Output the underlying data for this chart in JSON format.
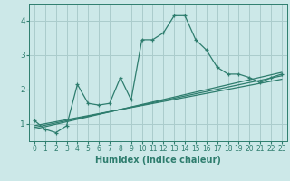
{
  "xlabel": "Humidex (Indice chaleur)",
  "bg_color": "#cce8e8",
  "line_color": "#2e7d6e",
  "grid_color": "#aacccc",
  "xlim": [
    -0.5,
    23.5
  ],
  "ylim": [
    0.5,
    4.5
  ],
  "yticks": [
    1,
    2,
    3,
    4
  ],
  "xticks": [
    0,
    1,
    2,
    3,
    4,
    5,
    6,
    7,
    8,
    9,
    10,
    11,
    12,
    13,
    14,
    15,
    16,
    17,
    18,
    19,
    20,
    21,
    22,
    23
  ],
  "series": [
    [
      0,
      1.1
    ],
    [
      1,
      0.85
    ],
    [
      2,
      0.75
    ],
    [
      3,
      0.95
    ],
    [
      4,
      2.15
    ],
    [
      5,
      1.6
    ],
    [
      6,
      1.55
    ],
    [
      7,
      1.6
    ],
    [
      8,
      2.35
    ],
    [
      9,
      1.7
    ],
    [
      10,
      3.45
    ],
    [
      11,
      3.45
    ],
    [
      12,
      3.65
    ],
    [
      13,
      4.15
    ],
    [
      14,
      4.15
    ],
    [
      15,
      3.45
    ],
    [
      16,
      3.15
    ],
    [
      17,
      2.65
    ],
    [
      18,
      2.45
    ],
    [
      19,
      2.45
    ],
    [
      20,
      2.35
    ],
    [
      21,
      2.2
    ],
    [
      22,
      2.35
    ],
    [
      23,
      2.45
    ]
  ],
  "linear1": [
    [
      0,
      0.95
    ],
    [
      23,
      2.3
    ]
  ],
  "linear2": [
    [
      0,
      0.9
    ],
    [
      23,
      2.4
    ]
  ],
  "linear3": [
    [
      0,
      0.85
    ],
    [
      23,
      2.5
    ]
  ]
}
